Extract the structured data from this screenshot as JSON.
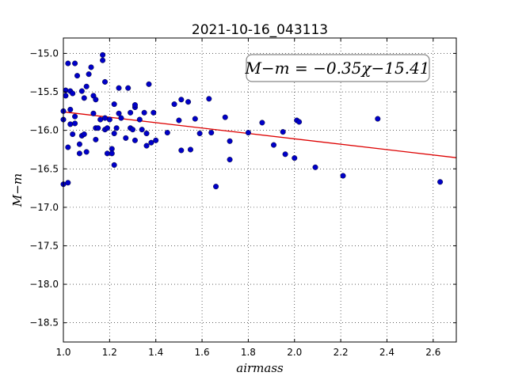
{
  "chart_data": {
    "type": "scatter",
    "title": "2021-10-16_043113",
    "xlabel": "airmass",
    "ylabel": "M−m",
    "xlim": [
      1.0,
      2.7
    ],
    "ylim": [
      -18.75,
      -14.8
    ],
    "xticks": [
      1.0,
      1.2,
      1.4,
      1.6,
      1.8,
      2.0,
      2.2,
      2.4,
      2.6
    ],
    "xtick_labels": [
      "1.0",
      "1.2",
      "1.4",
      "1.6",
      "1.8",
      "2.0",
      "2.2",
      "2.4",
      "2.6"
    ],
    "yticks": [
      -15.0,
      -15.5,
      -16.0,
      -16.5,
      -17.0,
      -17.5,
      -18.0,
      -18.5
    ],
    "ytick_labels": [
      "−15.0",
      "−15.5",
      "−16.0",
      "−16.5",
      "−17.0",
      "−17.5",
      "−18.0",
      "−18.5"
    ],
    "grid": true,
    "annotation": "M−m = −0.35χ−15.41",
    "fit": {
      "slope": -0.35,
      "intercept": -15.41,
      "color": "#dd0000"
    },
    "point_color": "#0000c8",
    "points": [
      [
        1.0,
        -15.75
      ],
      [
        1.0,
        -15.86
      ],
      [
        1.01,
        -15.55
      ],
      [
        1.01,
        -15.48
      ],
      [
        1.0,
        -16.7
      ],
      [
        1.02,
        -16.68
      ],
      [
        1.02,
        -16.22
      ],
      [
        1.02,
        -15.13
      ],
      [
        1.03,
        -15.49
      ],
      [
        1.03,
        -15.73
      ],
      [
        1.03,
        -15.92
      ],
      [
        1.04,
        -15.52
      ],
      [
        1.04,
        -16.05
      ],
      [
        1.05,
        -15.13
      ],
      [
        1.05,
        -15.91
      ],
      [
        1.05,
        -15.82
      ],
      [
        1.06,
        -15.29
      ],
      [
        1.07,
        -16.3
      ],
      [
        1.07,
        -16.18
      ],
      [
        1.08,
        -15.49
      ],
      [
        1.08,
        -16.07
      ],
      [
        1.09,
        -16.05
      ],
      [
        1.09,
        -15.58
      ],
      [
        1.1,
        -15.43
      ],
      [
        1.1,
        -16.28
      ],
      [
        1.11,
        -15.27
      ],
      [
        1.12,
        -15.18
      ],
      [
        1.13,
        -15.55
      ],
      [
        1.13,
        -15.78
      ],
      [
        1.14,
        -15.6
      ],
      [
        1.14,
        -15.97
      ],
      [
        1.14,
        -16.12
      ],
      [
        1.15,
        -15.97
      ],
      [
        1.16,
        -15.86
      ],
      [
        1.17,
        -15.02
      ],
      [
        1.17,
        -15.09
      ],
      [
        1.18,
        -15.37
      ],
      [
        1.18,
        -15.99
      ],
      [
        1.18,
        -15.84
      ],
      [
        1.19,
        -16.3
      ],
      [
        1.19,
        -15.97
      ],
      [
        1.2,
        -15.86
      ],
      [
        1.21,
        -16.24
      ],
      [
        1.21,
        -16.3
      ],
      [
        1.22,
        -16.45
      ],
      [
        1.22,
        -15.66
      ],
      [
        1.22,
        -16.04
      ],
      [
        1.23,
        -15.97
      ],
      [
        1.24,
        -15.45
      ],
      [
        1.24,
        -15.78
      ],
      [
        1.25,
        -15.84
      ],
      [
        1.27,
        -16.1
      ],
      [
        1.28,
        -15.45
      ],
      [
        1.29,
        -15.97
      ],
      [
        1.29,
        -15.77
      ],
      [
        1.3,
        -15.99
      ],
      [
        1.31,
        -15.7
      ],
      [
        1.31,
        -15.67
      ],
      [
        1.31,
        -16.13
      ],
      [
        1.33,
        -15.86
      ],
      [
        1.34,
        -15.99
      ],
      [
        1.35,
        -15.77
      ],
      [
        1.36,
        -16.2
      ],
      [
        1.36,
        -16.04
      ],
      [
        1.37,
        -15.4
      ],
      [
        1.38,
        -16.16
      ],
      [
        1.39,
        -15.77
      ],
      [
        1.4,
        -16.13
      ],
      [
        1.45,
        -16.03
      ],
      [
        1.48,
        -15.66
      ],
      [
        1.5,
        -15.87
      ],
      [
        1.51,
        -16.26
      ],
      [
        1.51,
        -15.6
      ],
      [
        1.54,
        -15.63
      ],
      [
        1.55,
        -16.25
      ],
      [
        1.57,
        -15.85
      ],
      [
        1.59,
        -16.04
      ],
      [
        1.63,
        -15.59
      ],
      [
        1.64,
        -16.03
      ],
      [
        1.66,
        -16.73
      ],
      [
        1.7,
        -15.83
      ],
      [
        1.72,
        -16.38
      ],
      [
        1.72,
        -16.14
      ],
      [
        1.8,
        -16.03
      ],
      [
        1.86,
        -15.9
      ],
      [
        1.91,
        -16.19
      ],
      [
        1.95,
        -16.02
      ],
      [
        1.96,
        -16.31
      ],
      [
        2.0,
        -16.36
      ],
      [
        2.01,
        -15.87
      ],
      [
        2.02,
        -15.89
      ],
      [
        2.09,
        -16.48
      ],
      [
        2.21,
        -16.59
      ],
      [
        2.36,
        -15.85
      ],
      [
        2.63,
        -16.67
      ]
    ]
  }
}
